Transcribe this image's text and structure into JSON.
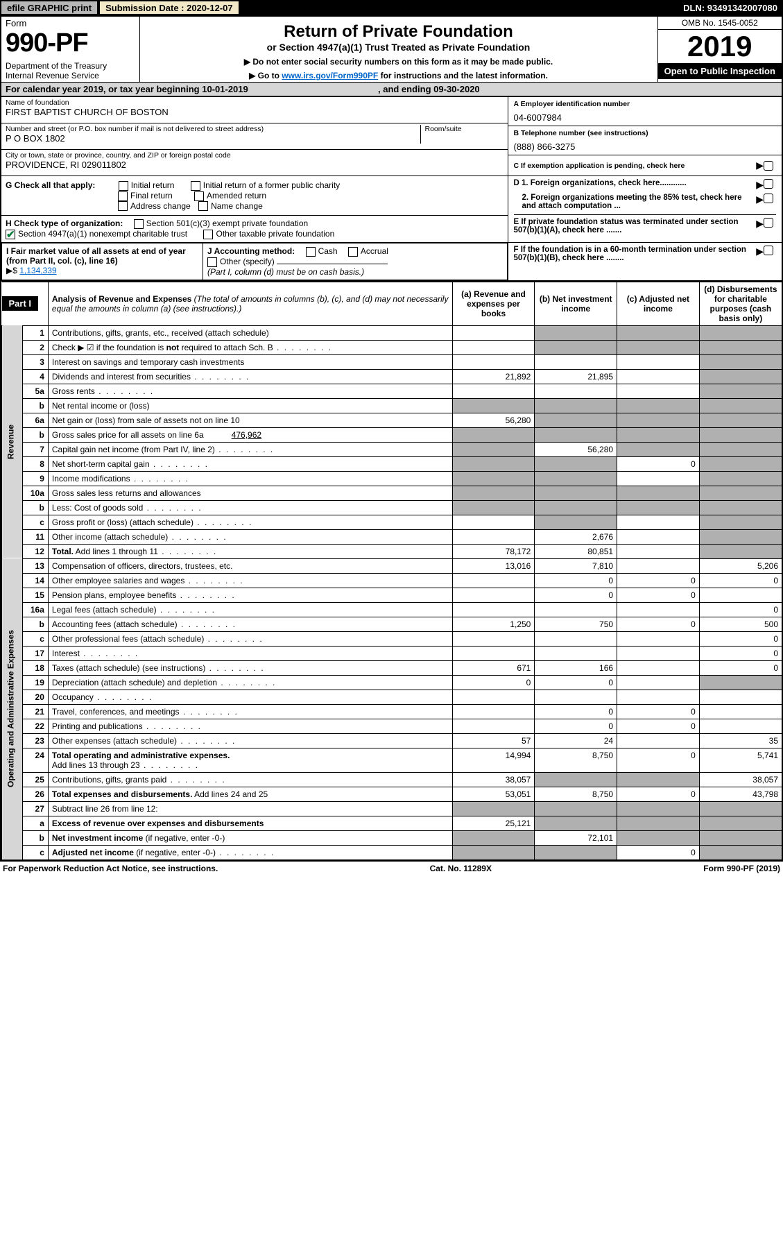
{
  "topbar": {
    "efile": "efile GRAPHIC print",
    "subdate_label": "Submission Date : 2020-12-07",
    "dln": "DLN: 93491342007080"
  },
  "header": {
    "form_label": "Form",
    "form_number": "990-PF",
    "dept": "Department of the Treasury\nInternal Revenue Service",
    "title": "Return of Private Foundation",
    "subtitle": "or Section 4947(a)(1) Trust Treated as Private Foundation",
    "note1": "▶ Do not enter social security numbers on this form as it may be made public.",
    "note2_pre": "▶ Go to ",
    "note2_link": "www.irs.gov/Form990PF",
    "note2_post": " for instructions and the latest information.",
    "omb": "OMB No. 1545-0052",
    "year": "2019",
    "open": "Open to Public Inspection"
  },
  "cal": {
    "text_pre": "For calendar year 2019, or tax year beginning ",
    "begin": "10-01-2019",
    "text_mid": " , and ending ",
    "end": "09-30-2020"
  },
  "idblock": {
    "name_label": "Name of foundation",
    "name": "FIRST BAPTIST CHURCH OF BOSTON",
    "addr_label": "Number and street (or P.O. box number if mail is not delivered to street address)",
    "addr": "P O BOX 1802",
    "room_label": "Room/suite",
    "room": "",
    "city_label": "City or town, state or province, country, and ZIP or foreign postal code",
    "city": "PROVIDENCE, RI  029011802",
    "ein_label": "A Employer identification number",
    "ein": "04-6007984",
    "tel_label": "B Telephone number (see instructions)",
    "tel": "(888) 866-3275",
    "c_label": "C If exemption application is pending, check here",
    "d1": "D 1. Foreign organizations, check here............",
    "d2": "2. Foreign organizations meeting the 85% test, check here and attach computation ...",
    "e": "E If private foundation status was terminated under section 507(b)(1)(A), check here .......",
    "f": "F If the foundation is in a 60-month termination under section 507(b)(1)(B), check here ........"
  },
  "gblock": {
    "label": "G Check all that apply:",
    "opts": [
      "Initial return",
      "Initial return of a former public charity",
      "Final return",
      "Amended return",
      "Address change",
      "Name change"
    ]
  },
  "hblock": {
    "label": "H Check type of organization:",
    "o1": "Section 501(c)(3) exempt private foundation",
    "o2": "Section 4947(a)(1) nonexempt charitable trust",
    "o3": "Other taxable private foundation"
  },
  "iblock": {
    "label": "I Fair market value of all assets at end of year (from Part II, col. (c), line 16)",
    "arrow": "▶$",
    "value": "1,134,339"
  },
  "jblock": {
    "label": "J Accounting method:",
    "cash": "Cash",
    "accrual": "Accrual",
    "other": "Other (specify)",
    "note": "(Part I, column (d) must be on cash basis.)"
  },
  "part1": {
    "part_label": "Part I",
    "heading": "Analysis of Revenue and Expenses",
    "heading_note": "(The total of amounts in columns (b), (c), and (d) may not necessarily equal the amounts in column (a) (see instructions).)",
    "col_a": "(a) Revenue and expenses per books",
    "col_b": "(b) Net investment income",
    "col_c": "(c) Adjusted net income",
    "col_d": "(d) Disbursements for charitable purposes (cash basis only)",
    "rev_label": "Revenue",
    "oae_label": "Operating and Administrative Expenses",
    "rows": [
      {
        "n": "1",
        "d": "",
        "a": "",
        "b": "",
        "c": "",
        "sb": true,
        "sc": true,
        "sd": true
      },
      {
        "n": "2",
        "d": "",
        "a": "",
        "b": "",
        "c": "",
        "sb": true,
        "sc": true,
        "sd": true,
        "bold": false,
        "dots": true
      },
      {
        "n": "3",
        "d": "",
        "a": "",
        "b": "",
        "c": "",
        "sd": true
      },
      {
        "n": "4",
        "d": "",
        "a": "21,892",
        "b": "21,895",
        "c": "",
        "sd": true,
        "dots": true
      },
      {
        "n": "5a",
        "d": "",
        "a": "",
        "b": "",
        "c": "",
        "sd": true,
        "dots": true
      },
      {
        "n": "b",
        "d": "",
        "a": "",
        "b": "",
        "c": "",
        "sa": true,
        "sb": true,
        "sc": true,
        "sd": true
      },
      {
        "n": "6a",
        "d": "",
        "a": "56,280",
        "b": "",
        "c": "",
        "sb": true,
        "sc": true,
        "sd": true
      },
      {
        "n": "b",
        "d": "",
        "a": "",
        "b": "",
        "c": "",
        "sa": true,
        "sb": true,
        "sc": true,
        "sd": true
      },
      {
        "n": "7",
        "d": "",
        "a": "",
        "b": "56,280",
        "c": "",
        "sa": true,
        "sc": true,
        "sd": true,
        "dots": true
      },
      {
        "n": "8",
        "d": "",
        "a": "",
        "b": "",
        "c": "0",
        "sa": true,
        "sb": true,
        "sd": true,
        "dots": true
      },
      {
        "n": "9",
        "d": "",
        "a": "",
        "b": "",
        "c": "",
        "sa": true,
        "sb": true,
        "sd": true,
        "dots": true
      },
      {
        "n": "10a",
        "d": "",
        "a": "",
        "b": "",
        "c": "",
        "sa": true,
        "sb": true,
        "sc": true,
        "sd": true
      },
      {
        "n": "b",
        "d": "",
        "a": "",
        "b": "",
        "c": "",
        "sa": true,
        "sb": true,
        "sc": true,
        "sd": true,
        "dots": true
      },
      {
        "n": "c",
        "d": "",
        "a": "",
        "b": "",
        "c": "",
        "sb": true,
        "sd": true,
        "dots": true
      },
      {
        "n": "11",
        "d": "",
        "a": "",
        "b": "2,676",
        "c": "",
        "sd": true,
        "dots": true
      },
      {
        "n": "12",
        "d": "",
        "a": "78,172",
        "b": "80,851",
        "c": "",
        "sd": true,
        "bold": true,
        "dots": true
      }
    ],
    "exp_rows": [
      {
        "n": "13",
        "d": "5,206",
        "a": "13,016",
        "b": "7,810",
        "c": ""
      },
      {
        "n": "14",
        "d": "0",
        "a": "",
        "b": "0",
        "c": "0",
        "dots": true
      },
      {
        "n": "15",
        "d": "",
        "a": "",
        "b": "0",
        "c": "0",
        "dots": true
      },
      {
        "n": "16a",
        "d": "0",
        "a": "",
        "b": "",
        "c": "",
        "dots": true
      },
      {
        "n": "b",
        "d": "500",
        "a": "1,250",
        "b": "750",
        "c": "0",
        "dots": true
      },
      {
        "n": "c",
        "d": "0",
        "a": "",
        "b": "",
        "c": "",
        "dots": true
      },
      {
        "n": "17",
        "d": "0",
        "a": "",
        "b": "",
        "c": "",
        "dots": true
      },
      {
        "n": "18",
        "d": "0",
        "a": "671",
        "b": "166",
        "c": "",
        "dots": true
      },
      {
        "n": "19",
        "d": "",
        "a": "0",
        "b": "0",
        "c": "",
        "sd": true,
        "dots": true
      },
      {
        "n": "20",
        "d": "",
        "a": "",
        "b": "",
        "c": "",
        "dots": true
      },
      {
        "n": "21",
        "d": "",
        "a": "",
        "b": "0",
        "c": "0",
        "dots": true
      },
      {
        "n": "22",
        "d": "",
        "a": "",
        "b": "0",
        "c": "0",
        "dots": true
      },
      {
        "n": "23",
        "d": "35",
        "a": "57",
        "b": "24",
        "c": "",
        "dots": true
      },
      {
        "n": "24",
        "d": "5,741",
        "a": "14,994",
        "b": "8,750",
        "c": "0",
        "bold": true,
        "dots": true
      },
      {
        "n": "25",
        "d": "38,057",
        "a": "38,057",
        "b": "",
        "c": "",
        "sb": true,
        "sc": true,
        "dots": true
      },
      {
        "n": "26",
        "d": "43,798",
        "a": "53,051",
        "b": "8,750",
        "c": "0",
        "bold": true
      },
      {
        "n": "27",
        "d": "",
        "a": "",
        "b": "",
        "c": "",
        "sa": true,
        "sb": true,
        "sc": true,
        "sd": true
      },
      {
        "n": "a",
        "d": "",
        "a": "25,121",
        "b": "",
        "c": "",
        "sb": true,
        "sc": true,
        "sd": true,
        "bold": true
      },
      {
        "n": "b",
        "d": "",
        "a": "",
        "b": "72,101",
        "c": "",
        "sa": true,
        "sc": true,
        "sd": true,
        "bold": true
      },
      {
        "n": "c",
        "d": "",
        "a": "",
        "b": "",
        "c": "0",
        "sa": true,
        "sb": true,
        "sd": true,
        "bold": true,
        "dots": true
      }
    ]
  },
  "footer": {
    "left": "For Paperwork Reduction Act Notice, see instructions.",
    "mid": "Cat. No. 11289X",
    "right": "Form 990-PF (2019)"
  }
}
